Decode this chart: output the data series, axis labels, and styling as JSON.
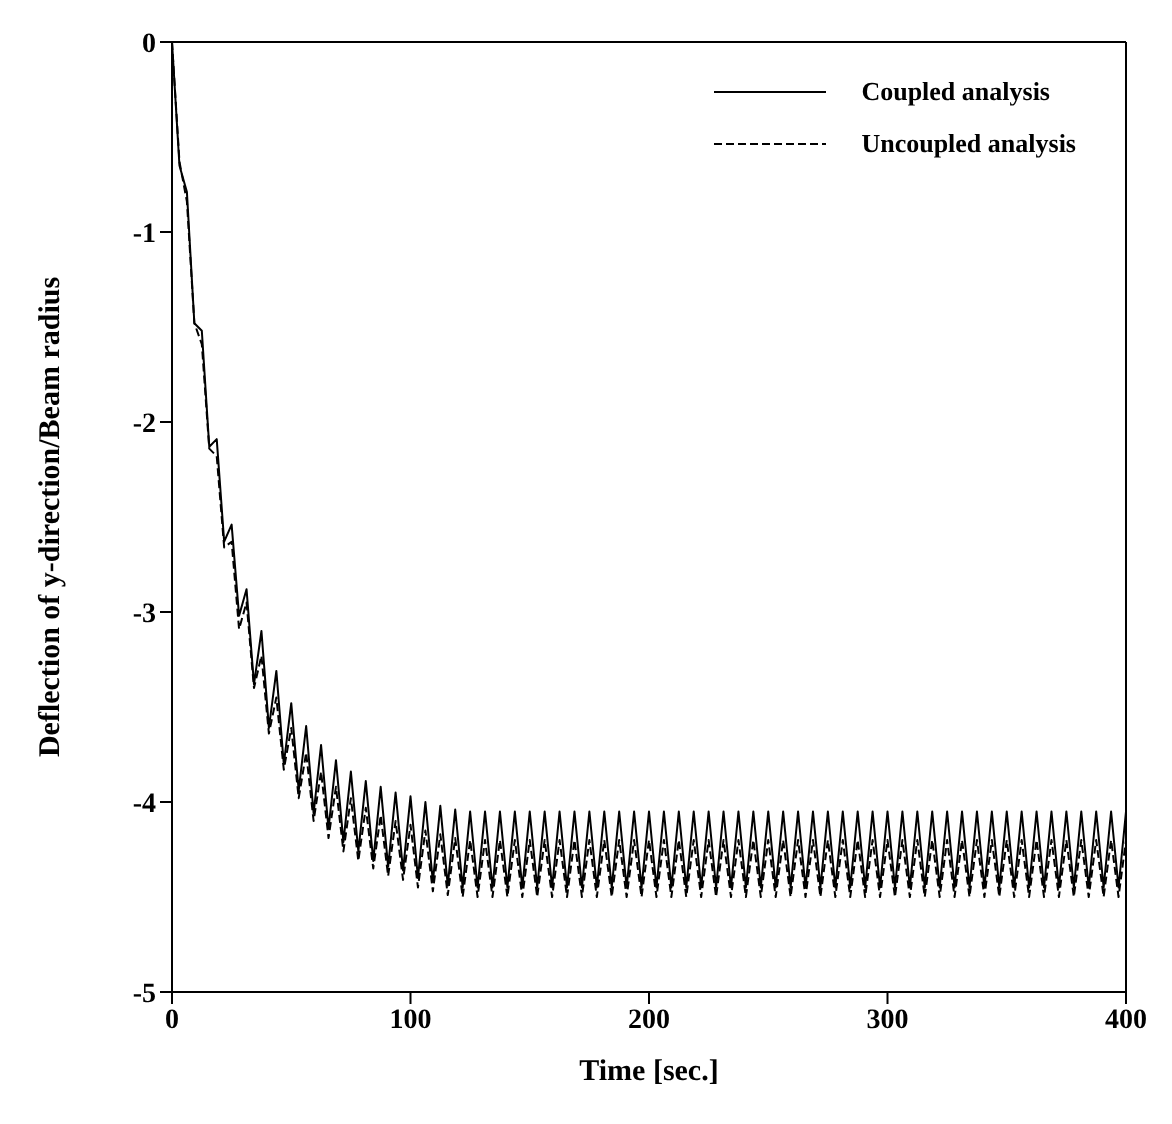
{
  "chart_data": {
    "type": "line",
    "xlabel": "Time [sec.]",
    "ylabel": "Deflection of y-direction/Beam radius",
    "x": [
      0,
      3.125,
      6.25,
      9.375,
      12.5,
      15.625,
      18.75,
      21.875,
      25,
      28.125,
      31.25,
      34.375,
      37.5,
      40.625,
      43.75,
      46.875,
      50,
      53.125,
      56.25,
      59.375,
      62.5,
      65.625,
      68.75,
      71.875,
      75,
      78.125,
      81.25,
      84.375,
      87.5,
      90.625,
      93.75,
      96.875,
      100,
      103.125,
      106.25,
      109.375,
      112.5,
      115.625,
      118.75,
      121.875,
      125,
      128.125,
      131.25,
      134.375,
      137.5,
      140.625,
      143.75,
      146.875,
      150,
      153.125,
      156.25,
      159.375,
      162.5,
      165.625,
      168.75,
      171.875,
      175,
      178.125,
      181.25,
      184.375,
      187.5,
      190.625,
      193.75,
      196.875,
      200,
      203.125,
      206.25,
      209.375,
      212.5,
      215.625,
      218.75,
      221.875,
      225,
      228.125,
      231.25,
      234.375,
      237.5,
      240.625,
      243.75,
      246.875,
      250,
      253.125,
      256.25,
      259.375,
      262.5,
      265.625,
      268.75,
      271.875,
      275,
      278.125,
      281.25,
      284.375,
      287.5,
      290.625,
      293.75,
      296.875,
      300,
      303.125,
      306.25,
      309.375,
      312.5,
      315.625,
      318.75,
      321.875,
      325,
      328.125,
      331.25,
      334.375,
      337.5,
      340.625,
      343.75,
      346.875,
      350,
      353.125,
      356.25,
      359.375,
      362.5,
      365.625,
      368.75,
      371.875,
      375,
      378.125,
      381.25,
      384.375,
      387.5,
      390.625,
      393.75,
      396.875,
      400
    ],
    "series": [
      {
        "name": "Coupled analysis",
        "color": "#000000",
        "line_style": "solid",
        "values": [
          0,
          -0.65,
          -0.79,
          -1.48,
          -1.52,
          -2.13,
          -2.09,
          -2.63,
          -2.54,
          -3.02,
          -2.88,
          -3.38,
          -3.1,
          -3.61,
          -3.31,
          -3.8,
          -3.48,
          -3.94,
          -3.6,
          -4.06,
          -3.7,
          -4.14,
          -3.78,
          -4.21,
          -3.84,
          -4.26,
          -3.89,
          -4.31,
          -3.92,
          -4.34,
          -3.95,
          -4.36,
          -3.97,
          -4.4,
          -4.0,
          -4.42,
          -4.02,
          -4.44,
          -4.04,
          -4.45,
          -4.05,
          -4.45,
          -4.05,
          -4.45,
          -4.05,
          -4.45,
          -4.05,
          -4.45,
          -4.05,
          -4.45,
          -4.05,
          -4.45,
          -4.05,
          -4.45,
          -4.05,
          -4.45,
          -4.05,
          -4.45,
          -4.05,
          -4.45,
          -4.05,
          -4.45,
          -4.05,
          -4.45,
          -4.05,
          -4.45,
          -4.05,
          -4.45,
          -4.05,
          -4.45,
          -4.05,
          -4.45,
          -4.05,
          -4.45,
          -4.05,
          -4.45,
          -4.05,
          -4.45,
          -4.05,
          -4.45,
          -4.05,
          -4.45,
          -4.05,
          -4.45,
          -4.05,
          -4.45,
          -4.05,
          -4.45,
          -4.05,
          -4.45,
          -4.05,
          -4.45,
          -4.05,
          -4.45,
          -4.05,
          -4.45,
          -4.05,
          -4.45,
          -4.05,
          -4.45,
          -4.05,
          -4.45,
          -4.05,
          -4.45,
          -4.05,
          -4.45,
          -4.05,
          -4.45,
          -4.05,
          -4.45,
          -4.05,
          -4.45,
          -4.05,
          -4.45,
          -4.05,
          -4.45,
          -4.05,
          -4.45,
          -4.05,
          -4.45,
          -4.05,
          -4.45,
          -4.05,
          -4.45,
          -4.05,
          -4.45,
          -4.05,
          -4.45,
          -4.05
        ]
      },
      {
        "name": "Uncoupled analysis",
        "color": "#000000",
        "line_style": "dashed",
        "values": [
          0,
          -0.63,
          -0.84,
          -1.48,
          -1.59,
          -2.14,
          -2.18,
          -2.66,
          -2.63,
          -3.09,
          -2.95,
          -3.4,
          -3.23,
          -3.64,
          -3.45,
          -3.83,
          -3.61,
          -3.98,
          -3.74,
          -4.1,
          -3.84,
          -4.19,
          -3.92,
          -4.26,
          -3.98,
          -4.31,
          -4.03,
          -4.35,
          -4.07,
          -4.39,
          -4.1,
          -4.41,
          -4.12,
          -4.45,
          -4.15,
          -4.47,
          -4.17,
          -4.49,
          -4.19,
          -4.5,
          -4.2,
          -4.5,
          -4.2,
          -4.5,
          -4.2,
          -4.5,
          -4.2,
          -4.5,
          -4.2,
          -4.5,
          -4.2,
          -4.5,
          -4.2,
          -4.5,
          -4.2,
          -4.5,
          -4.2,
          -4.5,
          -4.2,
          -4.5,
          -4.2,
          -4.5,
          -4.2,
          -4.5,
          -4.2,
          -4.5,
          -4.2,
          -4.5,
          -4.2,
          -4.5,
          -4.2,
          -4.5,
          -4.2,
          -4.5,
          -4.2,
          -4.5,
          -4.2,
          -4.5,
          -4.2,
          -4.5,
          -4.2,
          -4.5,
          -4.2,
          -4.5,
          -4.2,
          -4.5,
          -4.2,
          -4.5,
          -4.2,
          -4.5,
          -4.2,
          -4.5,
          -4.2,
          -4.5,
          -4.2,
          -4.5,
          -4.2,
          -4.5,
          -4.2,
          -4.5,
          -4.2,
          -4.5,
          -4.2,
          -4.5,
          -4.2,
          -4.5,
          -4.2,
          -4.5,
          -4.2,
          -4.5,
          -4.2,
          -4.5,
          -4.2,
          -4.5,
          -4.2,
          -4.5,
          -4.2,
          -4.5,
          -4.2,
          -4.5,
          -4.2,
          -4.5,
          -4.2,
          -4.5,
          -4.2,
          -4.5,
          -4.2,
          -4.5,
          -4.2
        ]
      }
    ],
    "xlim": [
      0,
      400
    ],
    "xticks": [
      0,
      100,
      200,
      300,
      400
    ],
    "ylim": [
      -5,
      0
    ],
    "yticks": [
      -5,
      -4,
      -3,
      -2,
      -1,
      0
    ],
    "grid": false,
    "legend": "top right",
    "marker": "none"
  }
}
